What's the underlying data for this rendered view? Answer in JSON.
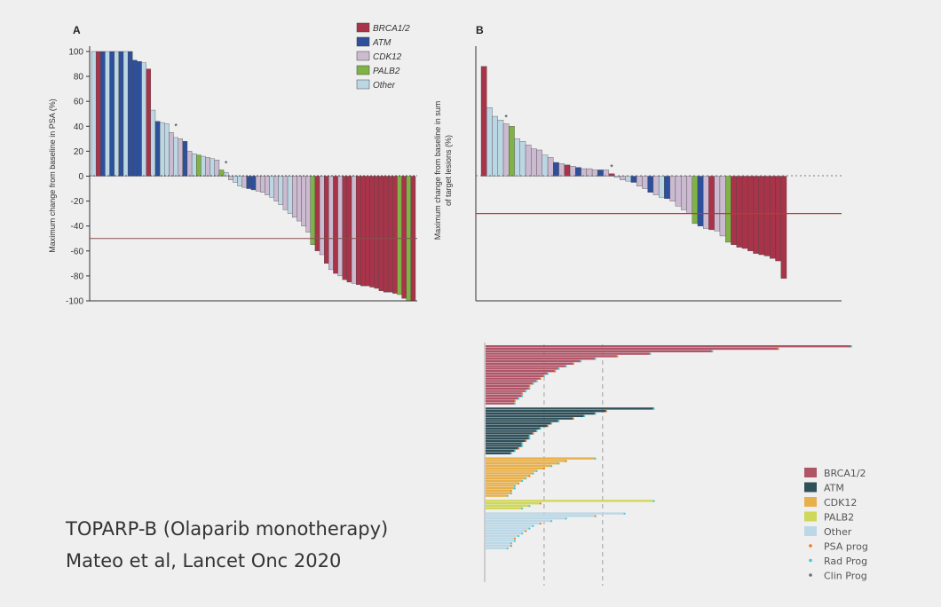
{
  "colors": {
    "BRCA1/2": "#a9344a",
    "ATM": "#2e4f9b",
    "CDK12": "#cbbad0",
    "PALB2": "#7fb345",
    "Other": "#bcd7e4",
    "ref_line": "#c0392b"
  },
  "caption": {
    "line1": "TOPARP-B (Olaparib monotherapy)",
    "line2": "Mateo et al, Lancet Onc 2020"
  },
  "chart_data": [
    {
      "panel": "A",
      "type": "bar",
      "title": "",
      "panel_label": "A",
      "ylabel": "Maximum change from baseline in PSA (%)",
      "xlabel": "",
      "ylim": [
        -100,
        100
      ],
      "yticks": [
        "100",
        "80",
        "60",
        "40",
        "20",
        "0",
        "-20",
        "-40",
        "-60",
        "-80",
        "-100"
      ],
      "reference_line": -50,
      "legend": {
        "placement": "top-center",
        "entries": [
          "BRCA1/2",
          "ATM",
          "CDK12",
          "PALB2",
          "Other"
        ]
      },
      "annotations": [
        "*",
        "*"
      ],
      "bars": [
        {
          "g": "Other",
          "v": 100
        },
        {
          "g": "BRCA1/2",
          "v": 100
        },
        {
          "g": "ATM",
          "v": 100
        },
        {
          "g": "Other",
          "v": 100
        },
        {
          "g": "ATM",
          "v": 100
        },
        {
          "g": "Other",
          "v": 100
        },
        {
          "g": "ATM",
          "v": 100
        },
        {
          "g": "Other",
          "v": 100
        },
        {
          "g": "ATM",
          "v": 100
        },
        {
          "g": "ATM",
          "v": 93
        },
        {
          "g": "ATM",
          "v": 92
        },
        {
          "g": "Other",
          "v": 91
        },
        {
          "g": "BRCA1/2",
          "v": 86
        },
        {
          "g": "Other",
          "v": 53
        },
        {
          "g": "ATM",
          "v": 44
        },
        {
          "g": "Other",
          "v": 43
        },
        {
          "g": "Other",
          "v": 42
        },
        {
          "g": "CDK12",
          "v": 35
        },
        {
          "g": "Other",
          "v": 31
        },
        {
          "g": "CDK12",
          "v": 30
        },
        {
          "g": "ATM",
          "v": 28
        },
        {
          "g": "CDK12",
          "v": 20
        },
        {
          "g": "Other",
          "v": 18
        },
        {
          "g": "PALB2",
          "v": 17
        },
        {
          "g": "Other",
          "v": 16
        },
        {
          "g": "CDK12",
          "v": 15
        },
        {
          "g": "Other",
          "v": 14
        },
        {
          "g": "CDK12",
          "v": 13
        },
        {
          "g": "PALB2",
          "v": 5
        },
        {
          "g": "Other",
          "v": 3
        },
        {
          "g": "CDK12",
          "v": -3
        },
        {
          "g": "Other",
          "v": -5
        },
        {
          "g": "Other",
          "v": -8
        },
        {
          "g": "CDK12",
          "v": -9
        },
        {
          "g": "ATM",
          "v": -10
        },
        {
          "g": "ATM",
          "v": -11
        },
        {
          "g": "CDK12",
          "v": -12
        },
        {
          "g": "CDK12",
          "v": -13
        },
        {
          "g": "CDK12",
          "v": -15
        },
        {
          "g": "Other",
          "v": -17
        },
        {
          "g": "CDK12",
          "v": -20
        },
        {
          "g": "Other",
          "v": -23
        },
        {
          "g": "CDK12",
          "v": -27
        },
        {
          "g": "Other",
          "v": -30
        },
        {
          "g": "CDK12",
          "v": -33
        },
        {
          "g": "CDK12",
          "v": -36
        },
        {
          "g": "CDK12",
          "v": -40
        },
        {
          "g": "CDK12",
          "v": -45
        },
        {
          "g": "PALB2",
          "v": -55
        },
        {
          "g": "BRCA1/2",
          "v": -60
        },
        {
          "g": "CDK12",
          "v": -63
        },
        {
          "g": "BRCA1/2",
          "v": -70
        },
        {
          "g": "CDK12",
          "v": -75
        },
        {
          "g": "BRCA1/2",
          "v": -78
        },
        {
          "g": "CDK12",
          "v": -80
        },
        {
          "g": "BRCA1/2",
          "v": -83
        },
        {
          "g": "BRCA1/2",
          "v": -85
        },
        {
          "g": "CDK12",
          "v": -86
        },
        {
          "g": "BRCA1/2",
          "v": -87
        },
        {
          "g": "BRCA1/2",
          "v": -88
        },
        {
          "g": "BRCA1/2",
          "v": -88
        },
        {
          "g": "BRCA1/2",
          "v": -89
        },
        {
          "g": "BRCA1/2",
          "v": -90
        },
        {
          "g": "BRCA1/2",
          "v": -92
        },
        {
          "g": "BRCA1/2",
          "v": -93
        },
        {
          "g": "BRCA1/2",
          "v": -93
        },
        {
          "g": "BRCA1/2",
          "v": -94
        },
        {
          "g": "PALB2",
          "v": -95
        },
        {
          "g": "BRCA1/2",
          "v": -98
        },
        {
          "g": "PALB2",
          "v": -100
        },
        {
          "g": "BRCA1/2",
          "v": -100
        }
      ]
    },
    {
      "panel": "B",
      "type": "bar",
      "title": "",
      "panel_label": "B",
      "ylabel": "Maximum change from baseline in sum of target lesions (%)",
      "xlabel": "",
      "ylim": [
        -100,
        100
      ],
      "yticks": [],
      "reference_line": -30,
      "annotations": [
        "*",
        "*"
      ],
      "bars": [
        {
          "g": "BRCA1/2",
          "v": 88
        },
        {
          "g": "Other",
          "v": 55
        },
        {
          "g": "Other",
          "v": 48
        },
        {
          "g": "Other",
          "v": 45
        },
        {
          "g": "CDK12",
          "v": 42
        },
        {
          "g": "PALB2",
          "v": 40
        },
        {
          "g": "Other",
          "v": 30
        },
        {
          "g": "Other",
          "v": 28
        },
        {
          "g": "CDK12",
          "v": 25
        },
        {
          "g": "CDK12",
          "v": 22
        },
        {
          "g": "CDK12",
          "v": 21
        },
        {
          "g": "Other",
          "v": 17
        },
        {
          "g": "CDK12",
          "v": 15
        },
        {
          "g": "ATM",
          "v": 11
        },
        {
          "g": "CDK12",
          "v": 10
        },
        {
          "g": "BRCA1/2",
          "v": 9
        },
        {
          "g": "CDK12",
          "v": 8
        },
        {
          "g": "ATM",
          "v": 7
        },
        {
          "g": "CDK12",
          "v": 6
        },
        {
          "g": "CDK12",
          "v": 6
        },
        {
          "g": "CDK12",
          "v": 5
        },
        {
          "g": "ATM",
          "v": 5
        },
        {
          "g": "CDK12",
          "v": 5
        },
        {
          "g": "BRCA1/2",
          "v": 2
        },
        {
          "g": "Other",
          "v": -1
        },
        {
          "g": "CDK12",
          "v": -3
        },
        {
          "g": "Other",
          "v": -4
        },
        {
          "g": "ATM",
          "v": -5
        },
        {
          "g": "CDK12",
          "v": -8
        },
        {
          "g": "CDK12",
          "v": -10
        },
        {
          "g": "ATM",
          "v": -13
        },
        {
          "g": "CDK12",
          "v": -15
        },
        {
          "g": "Other",
          "v": -17
        },
        {
          "g": "ATM",
          "v": -18
        },
        {
          "g": "CDK12",
          "v": -20
        },
        {
          "g": "CDK12",
          "v": -24
        },
        {
          "g": "CDK12",
          "v": -27
        },
        {
          "g": "CDK12",
          "v": -30
        },
        {
          "g": "PALB2",
          "v": -38
        },
        {
          "g": "ATM",
          "v": -40
        },
        {
          "g": "CDK12",
          "v": -42
        },
        {
          "g": "BRCA1/2",
          "v": -43
        },
        {
          "g": "CDK12",
          "v": -44
        },
        {
          "g": "CDK12",
          "v": -48
        },
        {
          "g": "PALB2",
          "v": -53
        },
        {
          "g": "BRCA1/2",
          "v": -55
        },
        {
          "g": "BRCA1/2",
          "v": -57
        },
        {
          "g": "BRCA1/2",
          "v": -58
        },
        {
          "g": "BRCA1/2",
          "v": -60
        },
        {
          "g": "BRCA1/2",
          "v": -62
        },
        {
          "g": "BRCA1/2",
          "v": -63
        },
        {
          "g": "BRCA1/2",
          "v": -64
        },
        {
          "g": "BRCA1/2",
          "v": -66
        },
        {
          "g": "BRCA1/2",
          "v": -68
        },
        {
          "g": "BRCA1/2",
          "v": -82
        }
      ]
    },
    {
      "panel": "swimmer",
      "type": "bar",
      "orientation": "horizontal",
      "title": "",
      "xlabel": "",
      "ylabel": "",
      "legend": {
        "placement": "bottom-right",
        "entries": [
          "BRCA1/2",
          "ATM",
          "CDK12",
          "PALB2",
          "Other",
          "PSA prog",
          "Rad Prog",
          "Clin Prog"
        ]
      },
      "legend_colors": {
        "BRCA1/2": "#b05568",
        "ATM": "#2f4f59",
        "CDK12": "#e8b04a",
        "PALB2": "#cfd85a",
        "Other": "#bcd8e6",
        "PSA prog": "#f07a1a",
        "Rad Prog": "#45c9d1",
        "Clin Prog": "#707070"
      },
      "reference_lines_relative": [
        0.16,
        0.32
      ],
      "groups": [
        {
          "g": "BRCA1/2",
          "values": [
            1.0,
            0.8,
            0.62,
            0.45,
            0.36,
            0.3,
            0.26,
            0.24,
            0.22,
            0.2,
            0.19,
            0.17,
            0.16,
            0.15,
            0.14,
            0.13,
            0.12,
            0.12,
            0.11,
            0.1,
            0.1,
            0.09,
            0.08,
            0.08
          ]
        },
        {
          "g": "ATM",
          "values": [
            0.46,
            0.33,
            0.3,
            0.27,
            0.24,
            0.2,
            0.18,
            0.17,
            0.15,
            0.14,
            0.13,
            0.12,
            0.12,
            0.11,
            0.1,
            0.1,
            0.09,
            0.08,
            0.07
          ]
        },
        {
          "g": "CDK12",
          "values": [
            0.3,
            0.22,
            0.2,
            0.18,
            0.16,
            0.14,
            0.13,
            0.12,
            0.11,
            0.1,
            0.09,
            0.08,
            0.08,
            0.07,
            0.07,
            0.06
          ]
        },
        {
          "g": "PALB2",
          "values": [
            0.46,
            0.15,
            0.12,
            0.1
          ]
        },
        {
          "g": "Other",
          "values": [
            0.38,
            0.3,
            0.22,
            0.18,
            0.15,
            0.13,
            0.12,
            0.11,
            0.1,
            0.09,
            0.08,
            0.08,
            0.07,
            0.07,
            0.06
          ]
        }
      ]
    }
  ]
}
